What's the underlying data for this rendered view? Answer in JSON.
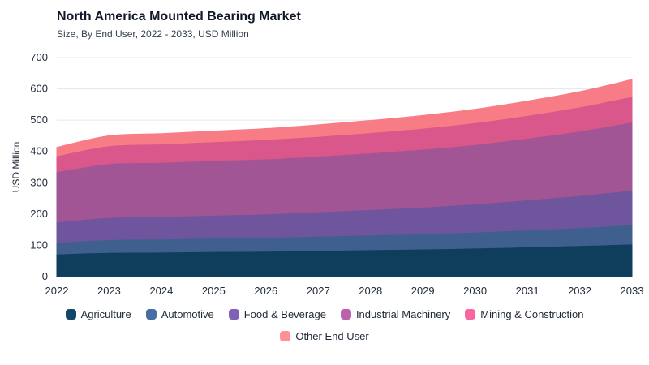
{
  "chart_data": {
    "type": "area",
    "stacked": true,
    "title": "North America Mounted Bearing Market",
    "subtitle": "Size, By End User, 2022 - 2033, USD Million",
    "xlabel": "",
    "ylabel": "USD Million",
    "ylim": [
      0,
      700
    ],
    "yticks": [
      0,
      100,
      200,
      300,
      400,
      500,
      600,
      700
    ],
    "grid": true,
    "legend_position": "bottom",
    "x": [
      "2022",
      "2023",
      "2024",
      "2025",
      "2026",
      "2027",
      "2028",
      "2029",
      "2030",
      "2031",
      "2032",
      "2033"
    ],
    "series": [
      {
        "name": "Agriculture",
        "color": "#0f3e5c",
        "values": [
          72,
          77,
          78,
          80,
          81,
          83,
          86,
          88,
          91,
          95,
          99,
          104
        ]
      },
      {
        "name": "Automotive",
        "color": "#3f5f8f",
        "values": [
          37,
          41,
          42,
          43,
          44,
          46,
          47,
          49,
          51,
          54,
          57,
          62
        ]
      },
      {
        "name": "Food & Beverage",
        "color": "#6f559d",
        "values": [
          65,
          71,
          72,
          73,
          75,
          78,
          81,
          85,
          90,
          96,
          103,
          110
        ]
      },
      {
        "name": "Industrial Machinery",
        "color": "#a25594",
        "values": [
          161,
          172,
          173,
          175,
          176,
          178,
          181,
          185,
          190,
          197,
          206,
          218
        ]
      },
      {
        "name": "Mining & Construction",
        "color": "#d9578a",
        "values": [
          51,
          57,
          59,
          60,
          62,
          63,
          65,
          67,
          70,
          73,
          77,
          82
        ]
      },
      {
        "name": "Other End User",
        "color": "#f87c85",
        "values": [
          27,
          32,
          33,
          34,
          35,
          37,
          39,
          41,
          43,
          46,
          49,
          54
        ]
      }
    ]
  }
}
